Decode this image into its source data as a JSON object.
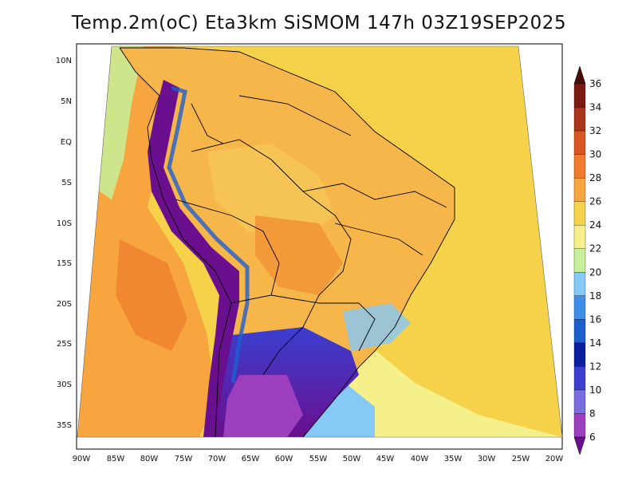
{
  "title": "Temp.2m(oC) Eta3km SiSMOM 147h 03Z19SEP2025",
  "lat_labels": [
    "10N",
    "5N",
    "EQ",
    "5S",
    "10S",
    "15S",
    "20S",
    "25S",
    "30S",
    "35S"
  ],
  "lon_labels": [
    "90W",
    "85W",
    "80W",
    "75W",
    "70W",
    "65W",
    "60W",
    "55W",
    "50W",
    "45W",
    "40W",
    "35W",
    "30W",
    "25W",
    "20W"
  ],
  "colorbar": {
    "levels": [
      "6",
      "8",
      "10",
      "12",
      "14",
      "16",
      "18",
      "20",
      "22",
      "24",
      "26",
      "28",
      "30",
      "32",
      "34",
      "36"
    ],
    "colors": [
      "#6a0f8e",
      "#9b3fbf",
      "#7a6de0",
      "#3a3fd0",
      "#0a1fa0",
      "#1e5fd0",
      "#3f8fe6",
      "#86c8f6",
      "#c8f09a",
      "#f5f08a",
      "#f5d24a",
      "#f7a53f",
      "#f07a2e",
      "#d9541f",
      "#a8341a",
      "#7a1a10",
      "#4a0c08"
    ]
  },
  "map": {
    "region": "South America",
    "variable": "2m temperature (oC)",
    "ocean_color": "#f5d24a",
    "pacific_warm_color": "#f7a53f",
    "land_color": "#f7b64a",
    "andes_cold_color": "#6a0f8e"
  }
}
